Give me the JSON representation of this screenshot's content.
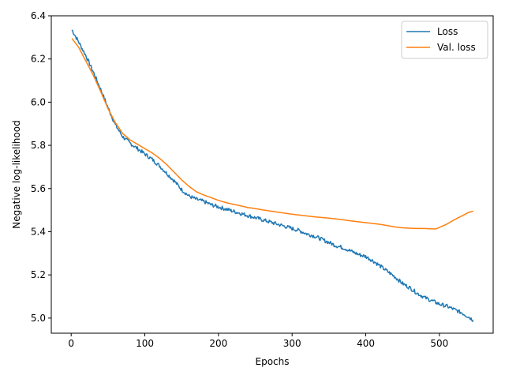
{
  "chart_data": {
    "type": "line",
    "title": "",
    "xlabel": "Epochs",
    "ylabel": "Negative log-likelihood",
    "xlim": [
      -27,
      573
    ],
    "ylim": [
      4.93,
      6.4
    ],
    "xticks": [
      0,
      100,
      200,
      300,
      400,
      500
    ],
    "yticks": [
      5.0,
      5.2,
      5.4,
      5.6,
      5.8,
      6.0,
      6.2,
      6.4
    ],
    "xtick_labels": [
      "0",
      "100",
      "200",
      "300",
      "400",
      "500"
    ],
    "ytick_labels": [
      "5.0",
      "5.2",
      "5.4",
      "5.6",
      "5.8",
      "6.0",
      "6.2",
      "6.4"
    ],
    "grid": false,
    "legend_position": "top-right",
    "series": [
      {
        "name": "Loss",
        "color": "#1f77b4",
        "noisy": true,
        "x": [
          1,
          10,
          20,
          30,
          40,
          50,
          60,
          70,
          80,
          90,
          100,
          110,
          120,
          130,
          140,
          150,
          160,
          170,
          180,
          190,
          200,
          210,
          220,
          230,
          240,
          250,
          260,
          270,
          280,
          290,
          300,
          310,
          320,
          330,
          340,
          350,
          360,
          370,
          380,
          390,
          400,
          410,
          420,
          430,
          440,
          450,
          460,
          470,
          480,
          490,
          500,
          510,
          520,
          530,
          540,
          546
        ],
        "y": [
          6.335,
          6.28,
          6.215,
          6.14,
          6.06,
          5.975,
          5.895,
          5.84,
          5.81,
          5.785,
          5.76,
          5.735,
          5.705,
          5.67,
          5.635,
          5.595,
          5.565,
          5.55,
          5.54,
          5.525,
          5.515,
          5.505,
          5.495,
          5.485,
          5.475,
          5.465,
          5.455,
          5.445,
          5.435,
          5.425,
          5.415,
          5.405,
          5.39,
          5.38,
          5.365,
          5.35,
          5.335,
          5.325,
          5.31,
          5.295,
          5.285,
          5.265,
          5.24,
          5.215,
          5.19,
          5.16,
          5.14,
          5.115,
          5.095,
          5.08,
          5.065,
          5.055,
          5.04,
          5.025,
          5.005,
          4.99
        ]
      },
      {
        "name": "Val. loss",
        "color": "#ff7f0e",
        "noisy": false,
        "x": [
          1,
          10,
          20,
          30,
          40,
          50,
          60,
          70,
          80,
          90,
          100,
          110,
          120,
          130,
          140,
          150,
          160,
          170,
          180,
          190,
          200,
          210,
          220,
          230,
          240,
          250,
          260,
          270,
          280,
          290,
          300,
          310,
          320,
          330,
          340,
          350,
          360,
          370,
          380,
          390,
          400,
          410,
          420,
          430,
          440,
          450,
          460,
          470,
          480,
          490,
          495,
          500,
          510,
          520,
          530,
          540,
          546
        ],
        "y": [
          6.295,
          6.255,
          6.19,
          6.125,
          6.05,
          5.97,
          5.905,
          5.855,
          5.825,
          5.805,
          5.785,
          5.765,
          5.74,
          5.71,
          5.675,
          5.64,
          5.61,
          5.585,
          5.57,
          5.558,
          5.545,
          5.535,
          5.527,
          5.52,
          5.512,
          5.507,
          5.501,
          5.496,
          5.491,
          5.486,
          5.481,
          5.477,
          5.473,
          5.469,
          5.466,
          5.463,
          5.459,
          5.455,
          5.45,
          5.446,
          5.442,
          5.438,
          5.434,
          5.428,
          5.422,
          5.418,
          5.416,
          5.415,
          5.415,
          5.413,
          5.413,
          5.42,
          5.435,
          5.455,
          5.472,
          5.49,
          5.495
        ]
      }
    ]
  }
}
